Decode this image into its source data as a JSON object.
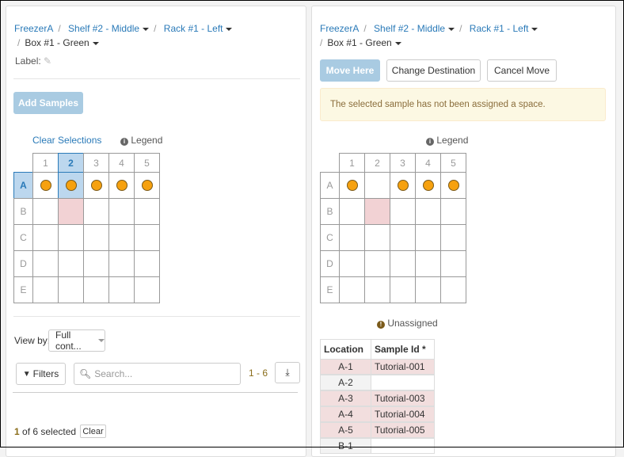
{
  "left": {
    "breadcrumb": [
      "FreezerA",
      "Shelf #2 - Middle",
      "Rack #1 - Left",
      "Box #1 - Green"
    ],
    "label_text": "Label:",
    "add_samples": "Add Samples",
    "clear_selections": "Clear Selections",
    "legend": "Legend",
    "columns": [
      "1",
      "2",
      "3",
      "4",
      "5"
    ],
    "rows": [
      "A",
      "B",
      "C",
      "D",
      "E"
    ],
    "view_by_label": "View by:",
    "view_by_value": "Full cont...",
    "filters": "Filters",
    "search_placeholder": "Search...",
    "range": "1 - 6",
    "selected_count": "1",
    "selected_text": " of 6 selected",
    "clear": "Clear"
  },
  "right": {
    "breadcrumb": [
      "FreezerA",
      "Shelf #2 - Middle",
      "Rack #1 - Left",
      "Box #1 - Green"
    ],
    "move_here": "Move Here",
    "change_destination": "Change Destination",
    "cancel_move": "Cancel Move",
    "alert": "The selected sample has not been assigned a space.",
    "legend": "Legend",
    "columns": [
      "1",
      "2",
      "3",
      "4",
      "5"
    ],
    "rows": [
      "A",
      "B",
      "C",
      "D",
      "E"
    ],
    "unassigned": "Unassigned",
    "table": {
      "headers": [
        "Location",
        "Sample Id *"
      ],
      "rows": [
        [
          "A-1",
          "Tutorial-001"
        ],
        [
          "A-2",
          ""
        ],
        [
          "A-3",
          "Tutorial-003"
        ],
        [
          "A-4",
          "Tutorial-004"
        ],
        [
          "A-5",
          "Tutorial-005"
        ],
        [
          "B-1",
          ""
        ]
      ]
    }
  },
  "colors": {
    "accent": "#2a7ab8",
    "occupied": "#f6a10f",
    "reserved": "#f2d2d4",
    "alert_bg": "#fcf8e3"
  }
}
